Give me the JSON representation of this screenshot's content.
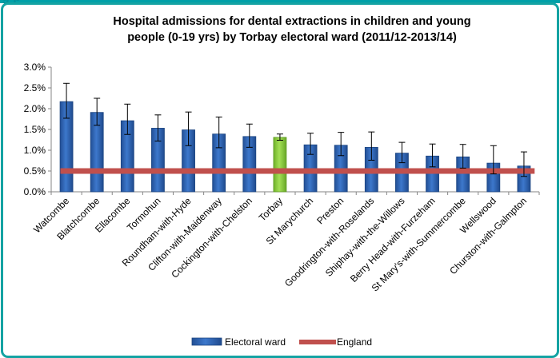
{
  "chart_data": {
    "type": "bar",
    "title": "Hospital admissions for dental extractions in children and young people (0-19 yrs) by Torbay electoral ward (2011/12-2013/14)",
    "title_lines": [
      "Hospital admissions for dental extractions in children and young",
      "people (0-19 yrs) by Torbay electoral ward (2011/12-2013/14)"
    ],
    "categories": [
      "Watcombe",
      "Blatchcombe",
      "Ellacombe",
      "Tormohun",
      "Roundham-with-Hyde",
      "Clifton-with-Maidenway",
      "Cockington-with-Chelston",
      "Torbay",
      "St Marychurch",
      "Preston",
      "Goodrington-with-Roselands",
      "Shiphay-with-the-Willows",
      "Berry Head-with-Furzeham",
      "St Mary's-with-Summercombe",
      "Wellswood",
      "Churston-with-Galmpton"
    ],
    "series": [
      {
        "name": "Electoral ward",
        "values": [
          2.17,
          1.91,
          1.71,
          1.53,
          1.49,
          1.39,
          1.33,
          1.31,
          1.13,
          1.12,
          1.07,
          0.93,
          0.86,
          0.84,
          0.69,
          0.62
        ],
        "error_low": [
          1.77,
          1.6,
          1.38,
          1.22,
          1.11,
          1.06,
          1.07,
          1.24,
          0.9,
          0.87,
          0.76,
          0.7,
          0.6,
          0.57,
          0.43,
          0.37
        ],
        "error_high": [
          2.61,
          2.25,
          2.11,
          1.85,
          1.92,
          1.8,
          1.63,
          1.39,
          1.41,
          1.43,
          1.44,
          1.19,
          1.15,
          1.14,
          1.11,
          0.96
        ],
        "color": "#2f64b4",
        "highlight_category": "Torbay",
        "highlight_color": "#8fd13e"
      }
    ],
    "reference_line": {
      "name": "England",
      "value": 0.5,
      "color": "#c0504d"
    },
    "ylim": [
      0,
      3
    ],
    "yticks": [
      "0.0%",
      "0.5%",
      "1.0%",
      "1.5%",
      "2.0%",
      "2.5%",
      "3.0%"
    ],
    "xlabel": "",
    "ylabel": "",
    "grid": false,
    "legend_position": "bottom",
    "legend": [
      "Electoral ward",
      "England"
    ]
  },
  "header_fragment": "g                                               p"
}
